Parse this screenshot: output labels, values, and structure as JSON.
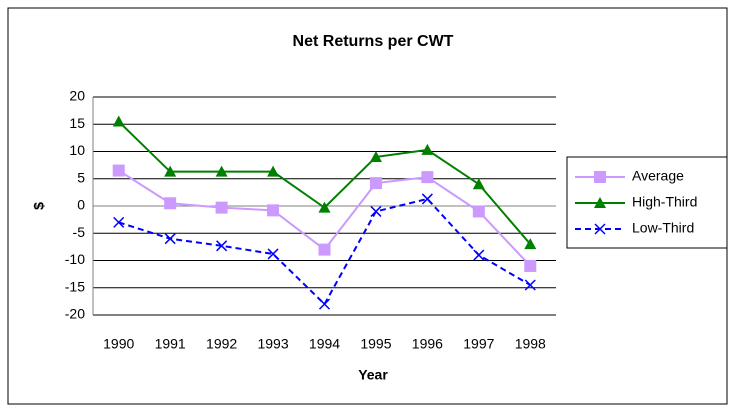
{
  "chart_data": {
    "type": "line",
    "title": "Net Returns per CWT",
    "xlabel": "Year",
    "ylabel": "$",
    "categories": [
      "1990",
      "1991",
      "1992",
      "1993",
      "1994",
      "1995",
      "1996",
      "1997",
      "1998"
    ],
    "series": [
      {
        "name": "Average",
        "color": "#cc99ff",
        "marker": "square",
        "dashed": false,
        "values": [
          6.5,
          0.5,
          -0.3,
          -0.8,
          -8,
          4.2,
          5.3,
          -1,
          -11
        ]
      },
      {
        "name": "High-Third",
        "color": "#008000",
        "marker": "triangle",
        "dashed": false,
        "values": [
          15.5,
          6.3,
          6.3,
          6.3,
          -0.3,
          9,
          10.3,
          4,
          -7
        ]
      },
      {
        "name": "Low-Third",
        "color": "#0000ff",
        "marker": "x",
        "dashed": true,
        "values": [
          -3,
          -6,
          -7.3,
          -8.8,
          -18,
          -1,
          1.3,
          -9,
          -14.5
        ]
      }
    ],
    "ylim": [
      -20,
      20
    ],
    "yticks": [
      -20,
      -15,
      -10,
      -5,
      0,
      5,
      10,
      15,
      20
    ],
    "grid": true,
    "legend": "right"
  }
}
